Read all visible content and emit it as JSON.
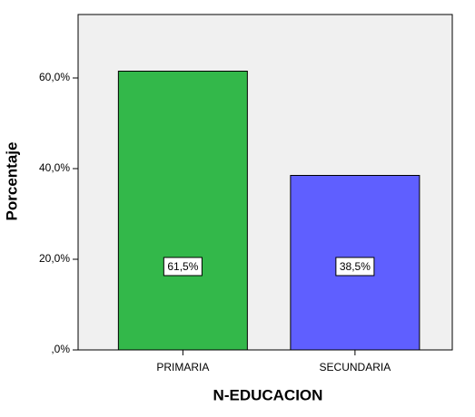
{
  "chart_data": {
    "type": "bar",
    "categories": [
      "PRIMARIA",
      "SECUNDARIA"
    ],
    "series": [
      {
        "name": "Porcentaje",
        "colors": [
          "#33b84a",
          "#5f5fff"
        ],
        "values": [
          61.5,
          38.5
        ],
        "value_labels": [
          "61,5%",
          "38,5%"
        ]
      }
    ],
    "x_label": "N-EDUCACION",
    "y_label": "Porcentaje",
    "ylim": [
      0,
      74
    ],
    "yticks": [
      {
        "value": 0,
        "label": ",0%"
      },
      {
        "value": 20,
        "label": "20,0%"
      },
      {
        "value": 40,
        "label": "40,0%"
      },
      {
        "value": 60,
        "label": "60,0%"
      }
    ]
  }
}
